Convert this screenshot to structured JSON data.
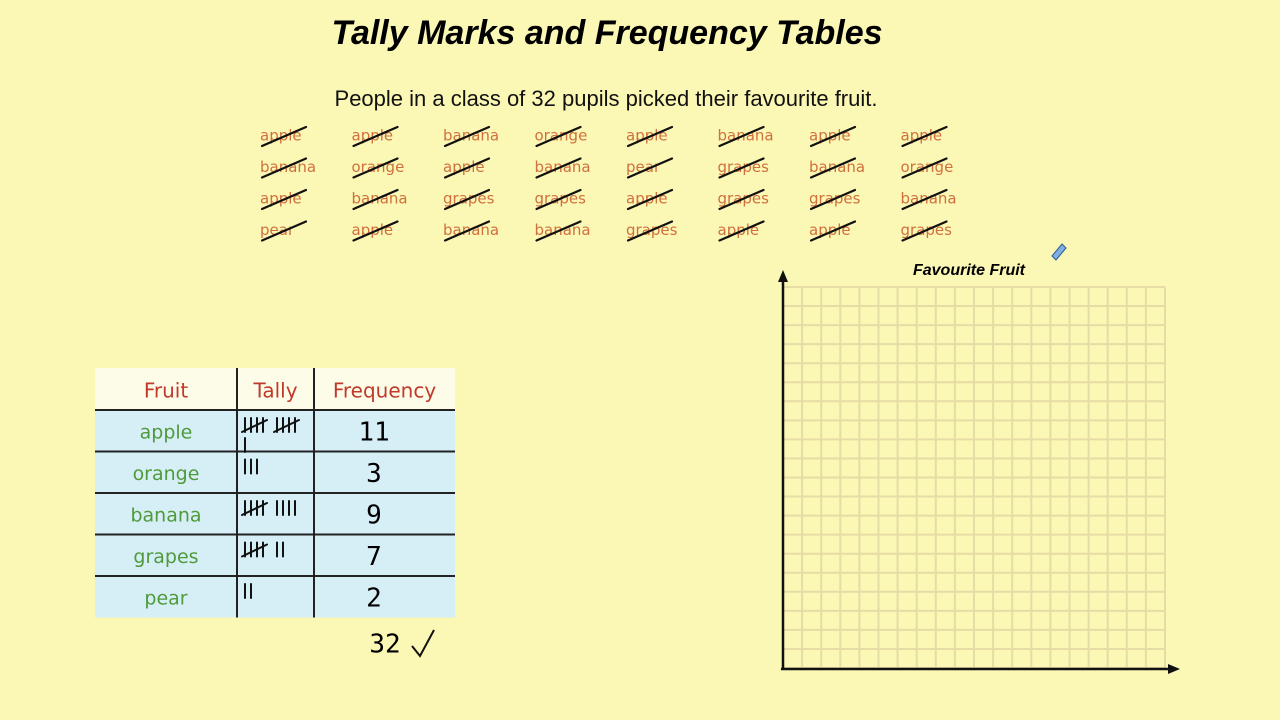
{
  "header": {
    "title": "Tally Marks and Frequency Tables",
    "subtitle": "People in a class of 32 pupils picked their favourite fruit."
  },
  "words": [
    [
      "apple",
      "apple",
      "banana",
      "orange",
      "apple",
      "banana",
      "apple",
      "apple"
    ],
    [
      "banana",
      "orange",
      "apple",
      "banana",
      "pear",
      "grapes",
      "banana",
      "orange"
    ],
    [
      "apple",
      "banana",
      "grapes",
      "grapes",
      "apple",
      "grapes",
      "grapes",
      "banana"
    ],
    [
      "pear",
      "apple",
      "banana",
      "banana",
      "grapes",
      "apple",
      "apple",
      "grapes"
    ]
  ],
  "table": {
    "headers": [
      "Fruit",
      "Tally",
      "Frequency"
    ],
    "rows": [
      {
        "fruit": "apple",
        "frequency": 11
      },
      {
        "fruit": "orange",
        "frequency": 3
      },
      {
        "fruit": "banana",
        "frequency": 9
      },
      {
        "fruit": "grapes",
        "frequency": 7
      },
      {
        "fruit": "pear",
        "frequency": 2
      }
    ],
    "total": 32
  },
  "graph": {
    "title": "Favourite Fruit"
  }
}
